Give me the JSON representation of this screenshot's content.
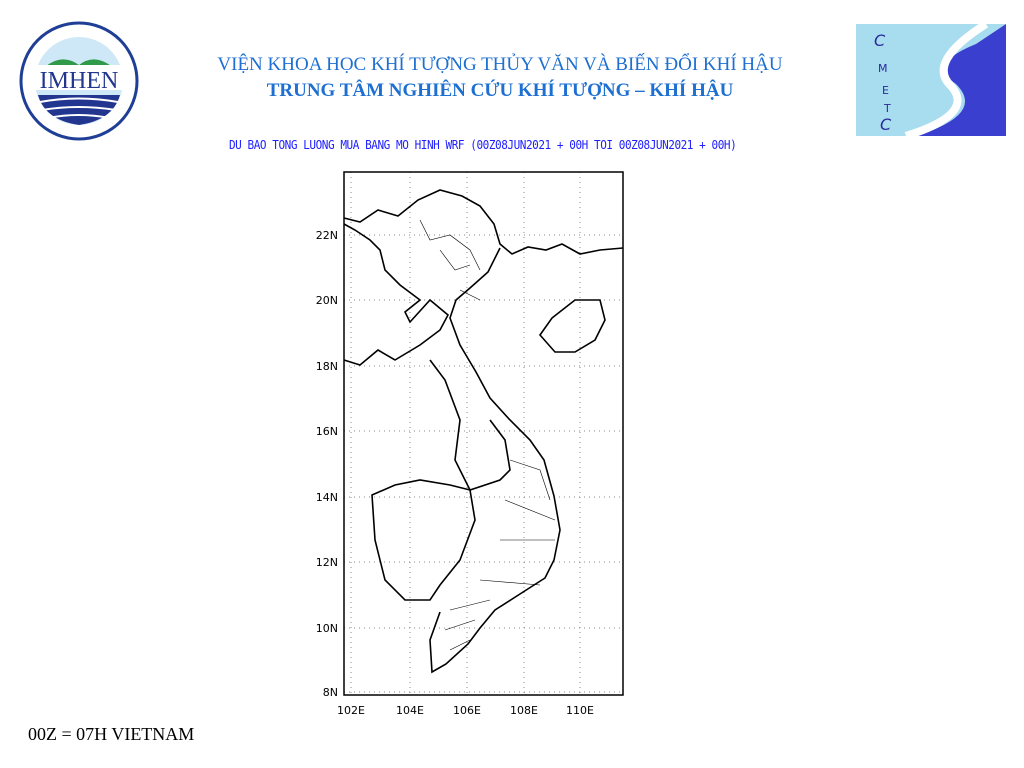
{
  "header": {
    "institute": "VIỆN KHOA HỌC KHÍ TƯỢNG THỦY VĂN VÀ BIẾN ĐỔI KHÍ HẬU",
    "center": "TRUNG TÂM NGHIÊN CỨU KHÍ TƯỢNG – KHÍ HẬU"
  },
  "logo_left": {
    "text": "IMHEN",
    "ring": "VIEN KHOA HOC KHI TUONG THUY VAN VA BIEN DOI KHI HAU"
  },
  "logo_right": {
    "text": "CMETC"
  },
  "map": {
    "title": "DU BAO TONG LUONG MUA BANG MO HINH WRF (00Z08JUN2021 + 00H TOI 00Z08JUN2021 + 00H)",
    "lat_ticks": [
      "22N",
      "20N",
      "18N",
      "16N",
      "14N",
      "12N",
      "10N",
      "8N"
    ],
    "lon_ticks": [
      "102E",
      "104E",
      "106E",
      "108E",
      "110E"
    ]
  },
  "footer": {
    "note": "00Z = 07H VIETNAM"
  }
}
